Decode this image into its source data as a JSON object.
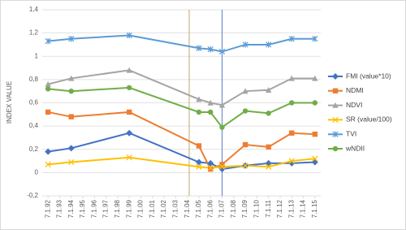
{
  "chart_data": {
    "type": "line",
    "y_label": "INDEX VALUE",
    "categories": [
      "7.1.92",
      "7.1.93",
      "7.1.94",
      "7.1.95",
      "7.1.96",
      "7.1.97",
      "7.1.98",
      "7.1.99",
      "7.1.00",
      "7.1.01",
      "7.1.02",
      "7.1.03",
      "7.1.04",
      "7.1.05",
      "7.1.06",
      "7.1.07",
      "7.1.08",
      "7.1.09",
      "7.1.10",
      "7.1.11",
      "7.1.12",
      "7.1.13",
      "7.1.14",
      "7.1.15"
    ],
    "x": [
      "7.1.92",
      "7.1.94",
      "7.1.99",
      "7.1.05",
      "7.1.06",
      "7.1.07",
      "7.1.09",
      "7.1.11",
      "7.1.13",
      "7.1.15"
    ],
    "series": [
      {
        "name": "FMI (value*10)",
        "color": "#4472c4",
        "marker": "diamond",
        "values": [
          0.18,
          0.21,
          0.34,
          0.09,
          0.08,
          0.03,
          0.06,
          0.08,
          0.08,
          0.09
        ]
      },
      {
        "name": "NDMI",
        "color": "#ed7d31",
        "marker": "square",
        "values": [
          0.52,
          0.48,
          0.52,
          0.23,
          0.03,
          0.07,
          0.24,
          0.22,
          0.34,
          0.33
        ]
      },
      {
        "name": "NDVI",
        "color": "#a5a5a5",
        "marker": "triangle",
        "values": [
          0.76,
          0.81,
          0.88,
          0.63,
          0.6,
          0.58,
          0.7,
          0.71,
          0.81,
          0.81
        ]
      },
      {
        "name": "SR (value/100)",
        "color": "#ffc000",
        "marker": "x",
        "values": [
          0.07,
          0.09,
          0.13,
          0.05,
          0.04,
          0.05,
          0.06,
          0.05,
          0.1,
          0.12
        ]
      },
      {
        "name": "TVI",
        "color": "#5b9bd5",
        "marker": "star",
        "values": [
          1.13,
          1.15,
          1.18,
          1.07,
          1.06,
          1.04,
          1.1,
          1.1,
          1.15,
          1.15
        ]
      },
      {
        "name": "wNDII",
        "color": "#70ad47",
        "marker": "circle",
        "values": [
          0.72,
          0.7,
          0.73,
          0.52,
          0.52,
          0.39,
          0.53,
          0.51,
          0.6,
          0.6
        ]
      }
    ],
    "ylim": [
      -0.2,
      1.4
    ],
    "yticks": [
      {
        "value": -0.2,
        "label": "-0,2"
      },
      0,
      {
        "value": 0.2,
        "label": "0,2"
      },
      {
        "value": 0.4,
        "label": "0,4"
      },
      {
        "value": 0.6,
        "label": "0,6"
      },
      {
        "value": 0.8,
        "label": "0,8"
      },
      1,
      {
        "value": 1.2,
        "label": "1,2"
      },
      {
        "value": 1.4,
        "label": "1,4"
      }
    ],
    "grid": true,
    "legend": "right"
  }
}
